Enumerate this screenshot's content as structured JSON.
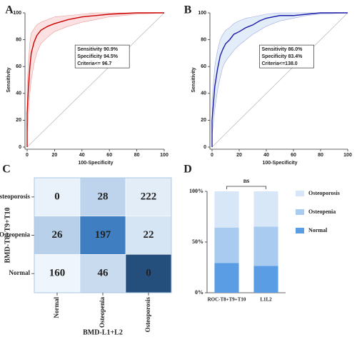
{
  "chart_data": [
    {
      "type": "roc",
      "panel_label": "A",
      "xlabel": "100-Specificity",
      "ylabel": "Sensitivity",
      "xlim": [
        0,
        100
      ],
      "ylim": [
        0,
        100
      ],
      "xticks": [
        0,
        20,
        40,
        60,
        80,
        100
      ],
      "yticks": [
        0,
        20,
        40,
        60,
        80,
        100
      ],
      "x": [
        0,
        0,
        1,
        2,
        3,
        5,
        7,
        10,
        15,
        20,
        30,
        40,
        50,
        60,
        80,
        100
      ],
      "series": [
        {
          "color": "#cc0000",
          "values": [
            0,
            25,
            45,
            60,
            70,
            78,
            83,
            87,
            90,
            92,
            95,
            97,
            98,
            99,
            100,
            100
          ]
        }
      ],
      "band": {
        "color": "#f9d4d4",
        "upper": [
          0,
          45,
          65,
          78,
          85,
          88,
          91,
          93,
          95,
          97,
          98,
          99,
          100,
          100,
          100,
          100
        ],
        "lower": [
          0,
          10,
          25,
          40,
          50,
          62,
          70,
          77,
          82,
          86,
          90,
          93,
          95,
          97,
          99,
          100
        ]
      },
      "annotations": [
        "Sensitivity 90.9%",
        "Specificity 94.5%",
        "Criteria<= 96.7"
      ]
    },
    {
      "type": "roc",
      "panel_label": "B",
      "xlabel": "100-Specificity",
      "ylabel": "Sensitivity",
      "xlim": [
        0,
        100
      ],
      "ylim": [
        0,
        100
      ],
      "xticks": [
        0,
        20,
        40,
        60,
        80,
        100
      ],
      "yticks": [
        0,
        20,
        40,
        60,
        80,
        100
      ],
      "x": [
        0,
        0,
        2,
        4,
        6,
        8,
        10,
        13,
        16,
        20,
        25,
        30,
        35,
        40,
        50,
        60,
        70,
        80,
        100
      ],
      "series": [
        {
          "color": "#1a1aa6",
          "values": [
            0,
            20,
            45,
            58,
            68,
            73,
            77,
            80,
            84,
            86,
            89,
            91,
            94,
            96,
            98,
            98,
            99,
            100,
            100
          ]
        }
      ],
      "band": {
        "color": "#d6e6f7",
        "upper": [
          0,
          35,
          60,
          72,
          80,
          84,
          87,
          89,
          92,
          94,
          96,
          97,
          98,
          99,
          100,
          100,
          100,
          100,
          100
        ],
        "lower": [
          0,
          8,
          28,
          42,
          52,
          60,
          64,
          68,
          72,
          76,
          80,
          84,
          87,
          90,
          94,
          96,
          98,
          99,
          100
        ]
      },
      "annotations": [
        "Sensitivity 86.0%",
        "Specificity 83.4%",
        "Criteria<=138.0"
      ]
    },
    {
      "type": "heatmap",
      "panel_label": "C",
      "xlabel": "BMD-L1+L2",
      "ylabel": "BMD-T8+T9+T10",
      "rows": [
        "Osteoporosis",
        "Osteopenia",
        "Normal"
      ],
      "columns": [
        "Normal",
        "Osteopenia",
        "Osteoporosis"
      ],
      "values": [
        [
          0,
          28,
          222
        ],
        [
          26,
          197,
          22
        ],
        [
          160,
          46,
          0
        ]
      ],
      "colors": [
        [
          "#e9f2fb",
          "#bdd4ec",
          "#e2edf8"
        ],
        [
          "#b8d0ea",
          "#3f7ec0",
          "#d6e5f4"
        ],
        [
          "#eef5fc",
          "#c8dbef",
          "#244e7c"
        ]
      ]
    },
    {
      "type": "stacked_bar",
      "panel_label": "D",
      "categories": [
        "ROC-T8+T9+T10",
        "L1L2"
      ],
      "series": [
        {
          "name": "Normal",
          "color": "#5a9de5",
          "values": [
            29.4,
            26.5
          ]
        },
        {
          "name": "Osteopenia",
          "color": "#a9cbef",
          "values": [
            34.9,
            38.7
          ]
        },
        {
          "name": "Osteoporosis",
          "color": "#d7e7f8",
          "values": [
            35.7,
            34.8
          ]
        }
      ],
      "ylim": [
        0,
        100
      ],
      "yticks": [
        {
          "value": 0,
          "label": "0%"
        },
        {
          "value": 50,
          "label": "50%"
        },
        {
          "value": 100,
          "label": "100%"
        }
      ],
      "annotation": "ns"
    }
  ]
}
